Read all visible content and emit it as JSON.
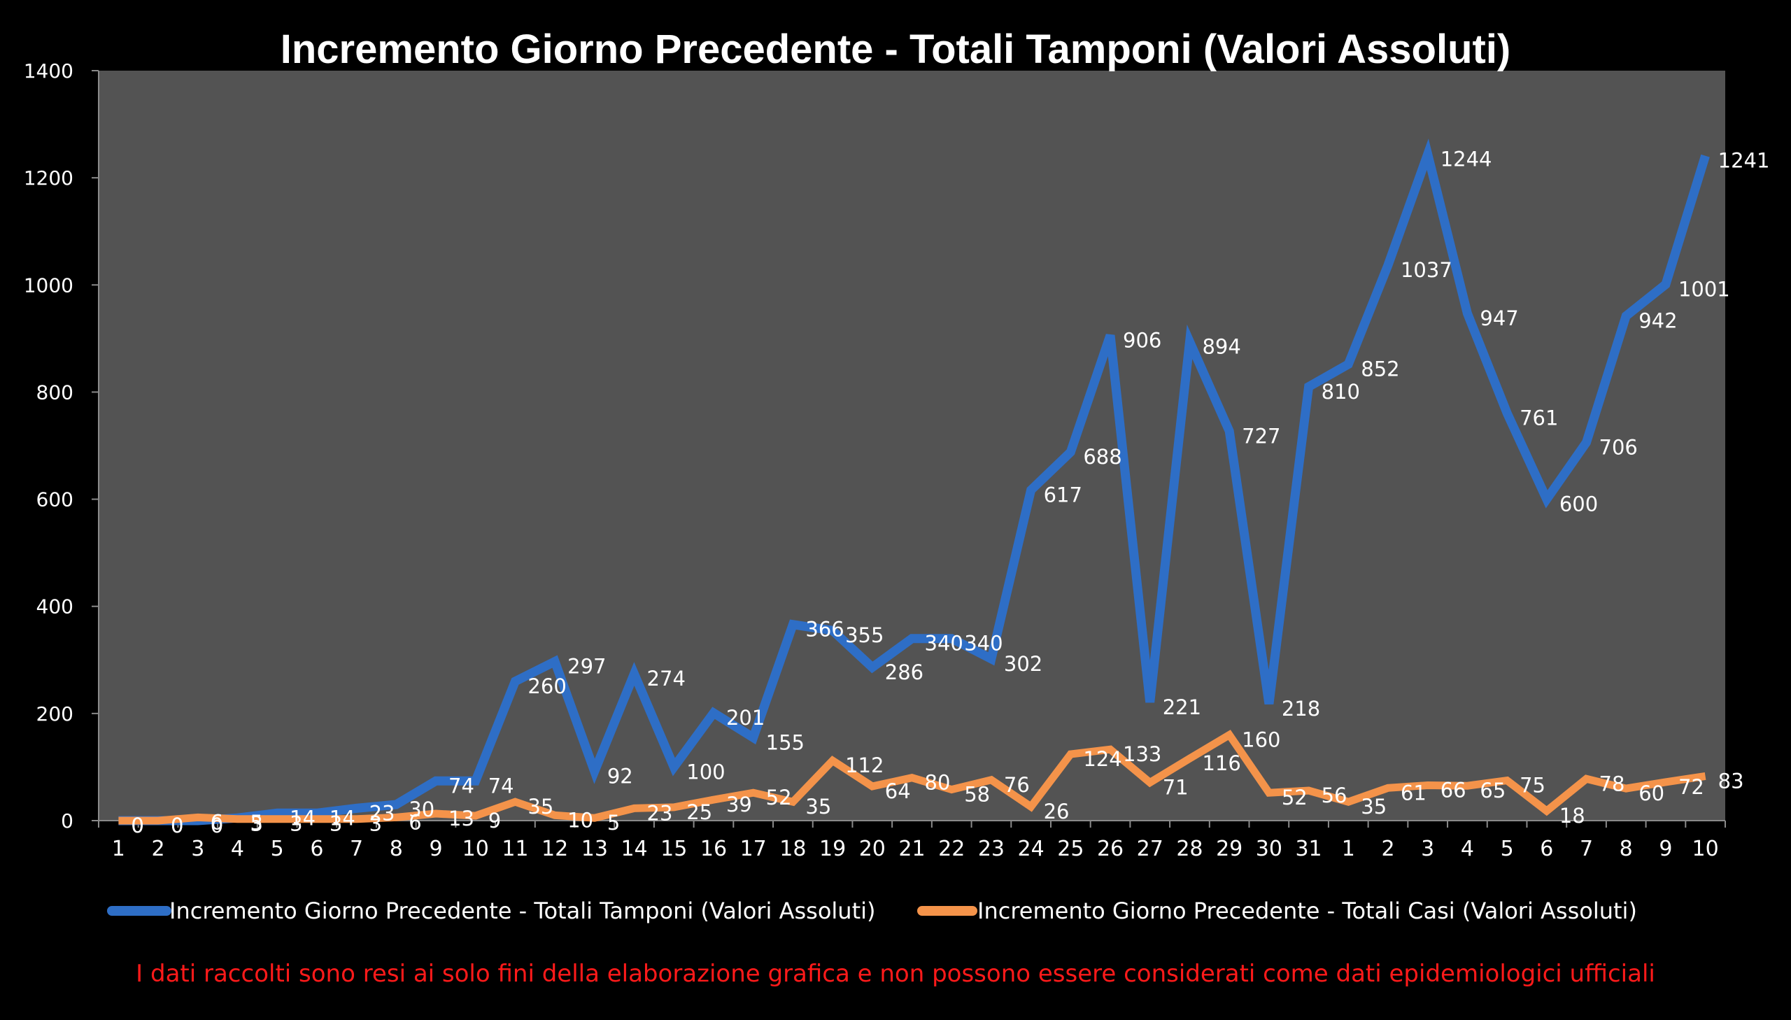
{
  "chart_data": {
    "type": "line",
    "title": "Incremento Giorno Precedente - Totali Tamponi (Valori Assoluti)",
    "xlabel": "",
    "ylabel": "",
    "ylim": [
      0,
      1400
    ],
    "yticks": [
      "0",
      "200",
      "400",
      "600",
      "800",
      "1000",
      "1200",
      "1400"
    ],
    "categories": [
      "1",
      "2",
      "3",
      "4",
      "5",
      "6",
      "7",
      "8",
      "9",
      "10",
      "11",
      "12",
      "13",
      "14",
      "15",
      "16",
      "17",
      "18",
      "19",
      "20",
      "21",
      "22",
      "23",
      "24",
      "25",
      "26",
      "27",
      "28",
      "29",
      "30",
      "31",
      "1",
      "2",
      "3",
      "4",
      "5",
      "6",
      "7",
      "8",
      "9",
      "10"
    ],
    "series": [
      {
        "name": "Incremento Giorno Precedente - Totali Tamponi (Valori Assoluti)",
        "color": "#2e6ec6",
        "values": [
          0,
          0,
          0,
          5,
          14,
          14,
          23,
          30,
          74,
          74,
          260,
          297,
          92,
          274,
          100,
          201,
          155,
          366,
          355,
          286,
          340,
          340,
          302,
          617,
          688,
          906,
          221,
          894,
          727,
          218,
          810,
          852,
          1037,
          1244,
          947,
          761,
          600,
          706,
          942,
          1001,
          1241
        ],
        "labels": [
          "0",
          "0",
          "0",
          "5",
          "14",
          "14",
          "23",
          "30",
          "74",
          "74",
          "260",
          "297",
          "92",
          "274",
          "100",
          "201",
          "155",
          "366",
          "355",
          "286",
          "340",
          "340",
          "302",
          "617",
          "688",
          "906",
          "221",
          "894",
          "727",
          "218",
          "810",
          "852",
          "1037",
          "1244",
          "947",
          "761",
          "600",
          "706",
          "942",
          "1001",
          "1241"
        ]
      },
      {
        "name": "Incremento Giorno Precedente - Totali Casi (Valori Assoluti)",
        "color": "#f4934a",
        "values": [
          0,
          0,
          6,
          3,
          3,
          3,
          3,
          6,
          13,
          9,
          35,
          10,
          5,
          23,
          25,
          39,
          52,
          35,
          112,
          64,
          80,
          58,
          76,
          26,
          124,
          133,
          71,
          116,
          160,
          52,
          56,
          35,
          61,
          66,
          65,
          75,
          18,
          78,
          60,
          72,
          83
        ],
        "labels": [
          "0",
          "0",
          "6",
          "3",
          "3",
          "3",
          "3",
          "6",
          "13",
          "9",
          "35",
          "10",
          "5",
          "23",
          "25",
          "39",
          "52",
          "35",
          "112",
          "64",
          "80",
          "58",
          "76",
          "26",
          "124",
          "133",
          "71",
          "116",
          "160",
          "52",
          "56",
          "35",
          "61",
          "66",
          "65",
          "75",
          "18",
          "78",
          "60",
          "72",
          "83"
        ]
      }
    ],
    "legend": "bottom",
    "grid": false,
    "background": "#535353"
  },
  "disclaimer": "I dati raccolti  sono resi ai solo fini della elaborazione grafica e non possono essere considerati come dati epidemiologici  ufficiali"
}
